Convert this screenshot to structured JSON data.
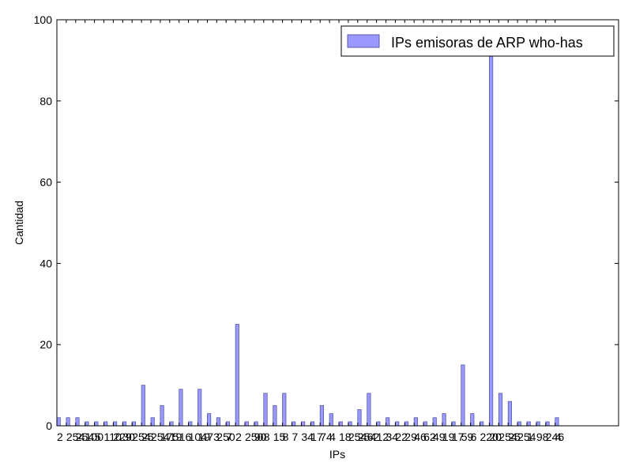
{
  "chart_data": {
    "type": "bar",
    "xlabel": "IPs",
    "ylabel": "Cantidad",
    "ylim": [
      0,
      100
    ],
    "yticks": [
      0,
      20,
      40,
      60,
      80,
      100
    ],
    "grid": false,
    "legend_position": "top-right",
    "legend": [
      "IPs emisoras de ARP who-has"
    ],
    "bar_color": "#9999ff",
    "bar_edge": "#5a5aa8",
    "series": [
      {
        "name": "IPs emisoras de ARP who-has",
        "values": [
          2,
          2,
          2,
          1,
          1,
          1,
          1,
          1,
          1,
          10,
          2,
          5,
          1,
          9,
          1,
          9,
          3,
          2,
          1,
          25,
          1,
          1,
          8,
          5,
          8,
          1,
          1,
          1,
          5,
          3,
          1,
          1,
          4,
          8,
          1,
          2,
          1,
          1,
          2,
          1,
          2,
          3,
          1,
          15,
          3,
          1,
          93,
          8,
          6,
          1,
          1,
          1,
          1,
          2
        ]
      }
    ],
    "tick_labels": [
      "2",
      "254",
      "254",
      "100",
      "5",
      "110",
      "229",
      "30",
      "254",
      "25",
      "254",
      "175",
      "19",
      "16",
      "104",
      "19",
      "73",
      "250",
      "7",
      "2",
      "250",
      "90",
      "8",
      "15",
      "8",
      "7",
      "34",
      "17",
      "74",
      "4",
      "18",
      "254",
      "254",
      "62",
      "12",
      "34",
      "22",
      "29",
      "46",
      "62",
      "49",
      "19",
      "17",
      "59",
      "6",
      "220",
      "20",
      "254",
      "25",
      "254",
      "1",
      "98",
      "246",
      "4"
    ]
  }
}
